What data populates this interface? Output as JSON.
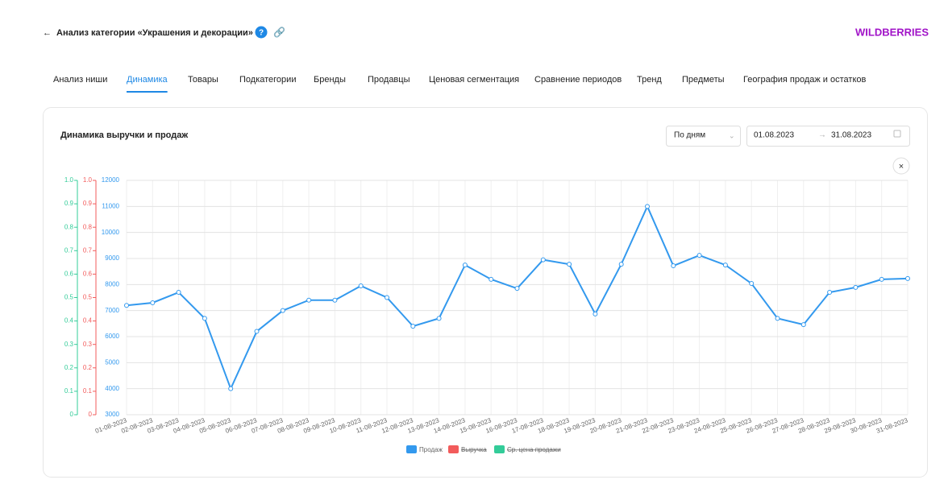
{
  "header": {
    "title": "Анализ категории «Украшения и декорации»",
    "brand": "WILDBERRIES"
  },
  "tabs": [
    "Анализ ниши",
    "Динамика",
    "Товары",
    "Подкатегории",
    "Бренды",
    "Продавцы",
    "Ценовая сегментация",
    "Сравнение периодов",
    "Тренд",
    "Предметы",
    "География продаж и остатков"
  ],
  "active_tab": 1,
  "controls": {
    "period": "По дням",
    "date_from": "01.08.2023",
    "date_to": "31.08.2023"
  },
  "chart_data": {
    "type": "line",
    "title": "Динамика выручки и продаж",
    "categories": [
      "01-08-2023",
      "02-08-2023",
      "03-08-2023",
      "04-08-2023",
      "05-08-2023",
      "06-08-2023",
      "07-08-2023",
      "08-08-2023",
      "09-08-2023",
      "10-08-2023",
      "11-08-2023",
      "12-08-2023",
      "13-08-2023",
      "14-08-2023",
      "15-08-2023",
      "16-08-2023",
      "17-08-2023",
      "18-08-2023",
      "19-08-2023",
      "20-08-2023",
      "21-08-2023",
      "22-08-2023",
      "23-08-2023",
      "24-08-2023",
      "25-08-2023",
      "26-08-2023",
      "27-08-2023",
      "28-08-2023",
      "29-08-2023",
      "30-08-2023",
      "31-08-2023"
    ],
    "series": [
      {
        "name": "Продаж",
        "color": "#3399ee",
        "values": [
          7200,
          7300,
          7700,
          6700,
          4000,
          6200,
          7000,
          7400,
          7400,
          7950,
          7500,
          6400,
          6700,
          8750,
          8200,
          7850,
          8950,
          8780,
          6870,
          8780,
          11000,
          8720,
          9120,
          8750,
          8040,
          6700,
          6460,
          7700,
          7890,
          8200,
          8230
        ]
      },
      {
        "name": "Выручка",
        "color": "#f25b5b",
        "axis": "y2",
        "hidden": true
      },
      {
        "name": "Ср. цена продажи",
        "color": "#33cc99",
        "axis": "y3",
        "hidden": true
      }
    ],
    "ylim": [
      3000,
      12000
    ],
    "yticks": [
      3000,
      4000,
      5000,
      6000,
      7000,
      8000,
      9000,
      10000,
      11000,
      12000
    ],
    "y2lim": [
      0,
      1
    ],
    "y2ticks": [
      0,
      0.1,
      0.2,
      0.3,
      0.4,
      0.5,
      0.6,
      0.7,
      0.8,
      0.9,
      {
        "value": 1,
        "label": "1.0"
      }
    ],
    "y3lim": [
      0,
      1
    ],
    "y3ticks": [
      0,
      0.1,
      0.2,
      0.3,
      0.4,
      0.5,
      0.6,
      0.7,
      0.8,
      0.9,
      {
        "value": 1,
        "label": "1.0"
      }
    ],
    "grid": true
  }
}
